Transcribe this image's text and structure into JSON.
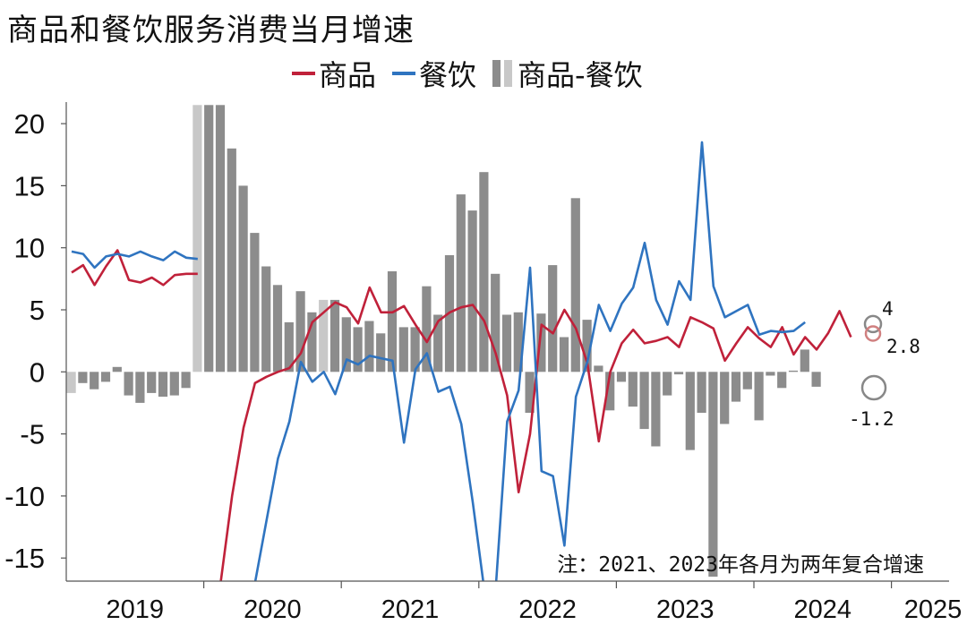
{
  "title": "商品和餐饮服务消费当月增速",
  "legend": [
    {
      "label": "商品",
      "color": "#c0213a",
      "kind": "line"
    },
    {
      "label": "餐饮",
      "color": "#2f74c0",
      "kind": "line"
    },
    {
      "label": "商品-餐饮",
      "color": "#8c8c8c",
      "kind": "bar"
    }
  ],
  "note": "注：2021、2023年各月为两年复合增速",
  "chart_data": {
    "type": "line+bar",
    "ylim": [
      -16.5,
      21.5
    ],
    "yticks": [
      20,
      15,
      10,
      5,
      0,
      -5,
      -10,
      -15
    ],
    "ytick_labels": [
      "20",
      "15",
      "10",
      "5",
      "0",
      "-5",
      "-10",
      "-15"
    ],
    "xtick_labels": [
      "2019",
      "2020",
      "2021",
      "2022",
      "2023",
      "2024",
      "2025"
    ],
    "start": "2019-01",
    "grid": false,
    "legend_position": "top",
    "series": [
      {
        "name": "商品",
        "type": "line",
        "color": "#c0213a",
        "values": [
          8.0,
          8.6,
          7.0,
          8.5,
          9.8,
          7.4,
          7.2,
          7.6,
          7.0,
          7.8,
          7.9,
          7.9,
          null,
          -17.0,
          -10.0,
          -4.5,
          -0.9,
          -0.4,
          0.0,
          0.3,
          1.5,
          4.0,
          4.8,
          5.6,
          5.2,
          3.9,
          6.8,
          4.8,
          4.8,
          5.3,
          3.8,
          2.4,
          4.1,
          4.8,
          5.2,
          5.4,
          4.1,
          1.5,
          -1.9,
          -9.7,
          -5.0,
          3.8,
          3.1,
          5.0,
          3.5,
          0.7,
          -5.6,
          0.0,
          2.3,
          3.4,
          2.3,
          2.5,
          2.8,
          2.0,
          4.4,
          4.0,
          3.5,
          0.9,
          2.3,
          3.6,
          2.7,
          2.0,
          3.6,
          1.4,
          2.8,
          1.8,
          3.1,
          4.9,
          2.8
        ]
      },
      {
        "name": "餐饮",
        "type": "line",
        "color": "#2f74c0",
        "values": [
          9.7,
          9.5,
          8.4,
          9.3,
          9.5,
          9.3,
          9.7,
          9.3,
          9.0,
          9.7,
          9.2,
          9.1,
          null,
          null,
          null,
          null,
          -17.0,
          -12.0,
          -7.0,
          -4.0,
          0.8,
          -0.8,
          0.0,
          -1.8,
          1.0,
          0.6,
          1.3,
          1.1,
          0.9,
          -5.7,
          0.2,
          1.5,
          -1.6,
          -1.2,
          -4.2,
          -10.5,
          -17.5,
          -17.5,
          -4.0,
          -1.5,
          8.4,
          -8.0,
          -8.4,
          -14.0,
          -2.0,
          0.8,
          5.4,
          3.3,
          5.5,
          6.8,
          10.4,
          5.8,
          3.8,
          7.3,
          5.8,
          18.5,
          6.9,
          4.4,
          4.9,
          5.4,
          3.0,
          3.3,
          3.2,
          3.3,
          4.0
        ]
      },
      {
        "name": "商品-餐饮",
        "type": "bar",
        "color": "#8c8c8c",
        "values": [
          -1.7,
          -0.9,
          -1.4,
          -0.8,
          0.4,
          -1.9,
          -2.5,
          -1.7,
          -2.0,
          -1.9,
          -1.3,
          21.5,
          21.5,
          21.5,
          18.0,
          15.0,
          11.2,
          8.5,
          7.0,
          4.0,
          6.5,
          4.8,
          5.8,
          5.8,
          4.4,
          3.6,
          4.1,
          3.1,
          8.1,
          3.6,
          3.6,
          6.9,
          4.6,
          9.4,
          14.3,
          13.0,
          16.1,
          7.9,
          4.6,
          4.8,
          -3.3,
          4.7,
          8.6,
          2.8,
          14.0,
          4.2,
          0.5,
          -3.1,
          -0.8,
          -2.8,
          -4.6,
          -6.0,
          -1.9,
          -0.2,
          -6.3,
          -3.3,
          -16.5,
          -4.2,
          -2.4,
          -1.4,
          -3.9,
          -0.3,
          -1.3,
          0.1,
          1.8,
          -1.2
        ],
        "light_bars": [
          0,
          11,
          22
        ]
      }
    ],
    "annotations": [
      {
        "label": "4",
        "series": "餐饮",
        "value": 4.0
      },
      {
        "label": "2.8",
        "series": "商品",
        "value": 2.8
      },
      {
        "label": "-1.2",
        "series": "商品-餐饮",
        "value": -1.2
      }
    ]
  }
}
